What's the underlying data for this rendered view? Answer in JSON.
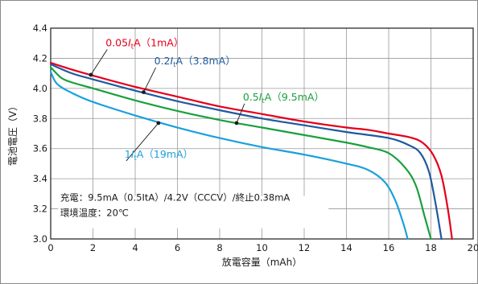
{
  "chart_data": {
    "type": "line",
    "title": "",
    "xlabel": "放電容量（mAh）",
    "ylabel": "電池電圧（V）",
    "xlim": [
      0,
      20
    ],
    "ylim": [
      3.0,
      4.4
    ],
    "xticks": [
      0,
      2,
      4,
      6,
      8,
      10,
      12,
      14,
      16,
      18,
      20
    ],
    "yticks": [
      3.0,
      3.2,
      3.4,
      3.6,
      3.8,
      4.0,
      4.2,
      4.4
    ],
    "xtick_labels": [
      "0",
      "2",
      "4",
      "6",
      "8",
      "10",
      "12",
      "14",
      "16",
      "18",
      "20"
    ],
    "ytick_labels": [
      "3.0",
      "3.2",
      "3.4",
      "3.6",
      "3.8",
      "4.0",
      "4.2",
      "4.4"
    ],
    "grid": true,
    "legend": "inline labels",
    "notes": [
      "充電：9.5mA（0.5ItA）/4.2V（CCCV）/終止0.38mA",
      "環境温度：20℃"
    ],
    "series": [
      {
        "name": "0.05ItA（1mA）",
        "color": "#e3001b",
        "points": [
          [
            0,
            4.17
          ],
          [
            1,
            4.125
          ],
          [
            2,
            4.085
          ],
          [
            4,
            4.01
          ],
          [
            6,
            3.945
          ],
          [
            8,
            3.88
          ],
          [
            10,
            3.83
          ],
          [
            12,
            3.78
          ],
          [
            14,
            3.74
          ],
          [
            15,
            3.725
          ],
          [
            16,
            3.7
          ],
          [
            17,
            3.675
          ],
          [
            17.6,
            3.64
          ],
          [
            18.1,
            3.56
          ],
          [
            18.5,
            3.42
          ],
          [
            18.8,
            3.2
          ],
          [
            19.0,
            3.0
          ]
        ]
      },
      {
        "name": "0.2ItA（3.8mA）",
        "color": "#1f5a9e",
        "points": [
          [
            0,
            4.16
          ],
          [
            1,
            4.1
          ],
          [
            2,
            4.06
          ],
          [
            4,
            3.985
          ],
          [
            6,
            3.915
          ],
          [
            8,
            3.855
          ],
          [
            10,
            3.8
          ],
          [
            12,
            3.755
          ],
          [
            14,
            3.71
          ],
          [
            16,
            3.67
          ],
          [
            17,
            3.62
          ],
          [
            17.5,
            3.57
          ],
          [
            17.9,
            3.45
          ],
          [
            18.2,
            3.25
          ],
          [
            18.5,
            3.0
          ]
        ]
      },
      {
        "name": "0.5ItA（9.5mA）",
        "color": "#19a03c",
        "points": [
          [
            0,
            4.14
          ],
          [
            0.5,
            4.07
          ],
          [
            1,
            4.04
          ],
          [
            2,
            4.0
          ],
          [
            4,
            3.92
          ],
          [
            6,
            3.85
          ],
          [
            8,
            3.79
          ],
          [
            10,
            3.74
          ],
          [
            12,
            3.69
          ],
          [
            14,
            3.64
          ],
          [
            15,
            3.61
          ],
          [
            16,
            3.57
          ],
          [
            16.8,
            3.47
          ],
          [
            17.3,
            3.35
          ],
          [
            17.7,
            3.15
          ],
          [
            18.0,
            3.0
          ]
        ]
      },
      {
        "name": "1ItA（19mA）",
        "color": "#1aa0dc",
        "points": [
          [
            0,
            4.11
          ],
          [
            0.3,
            4.03
          ],
          [
            1,
            3.97
          ],
          [
            2,
            3.91
          ],
          [
            4,
            3.82
          ],
          [
            6,
            3.74
          ],
          [
            8,
            3.67
          ],
          [
            10,
            3.61
          ],
          [
            12,
            3.56
          ],
          [
            14,
            3.5
          ],
          [
            15,
            3.46
          ],
          [
            15.8,
            3.38
          ],
          [
            16.3,
            3.26
          ],
          [
            16.7,
            3.1
          ],
          [
            16.9,
            3.0
          ]
        ]
      }
    ],
    "labels": [
      {
        "parts": [
          "0.05",
          "I",
          "t",
          "A（1mA）"
        ],
        "color": "#e3001b",
        "anchor": [
          2.6,
          4.28
        ],
        "pointer_to": [
          1.9,
          4.09
        ]
      },
      {
        "parts": [
          "0.2",
          "I",
          "t",
          "A（3.8mA）"
        ],
        "color": "#1f5a9e",
        "anchor": [
          4.9,
          4.16
        ],
        "pointer_to": [
          4.4,
          3.975
        ]
      },
      {
        "parts": [
          "0.5",
          "I",
          "t",
          "A（9.5mA）"
        ],
        "color": "#19a03c",
        "anchor": [
          9.1,
          3.92
        ],
        "pointer_to": [
          8.8,
          3.77
        ]
      },
      {
        "parts": [
          "1",
          "I",
          "t",
          "A（19mA）"
        ],
        "color": "#1aa0dc",
        "anchor": [
          3.5,
          3.54
        ],
        "pointer_to": [
          5.1,
          3.77
        ]
      }
    ]
  }
}
